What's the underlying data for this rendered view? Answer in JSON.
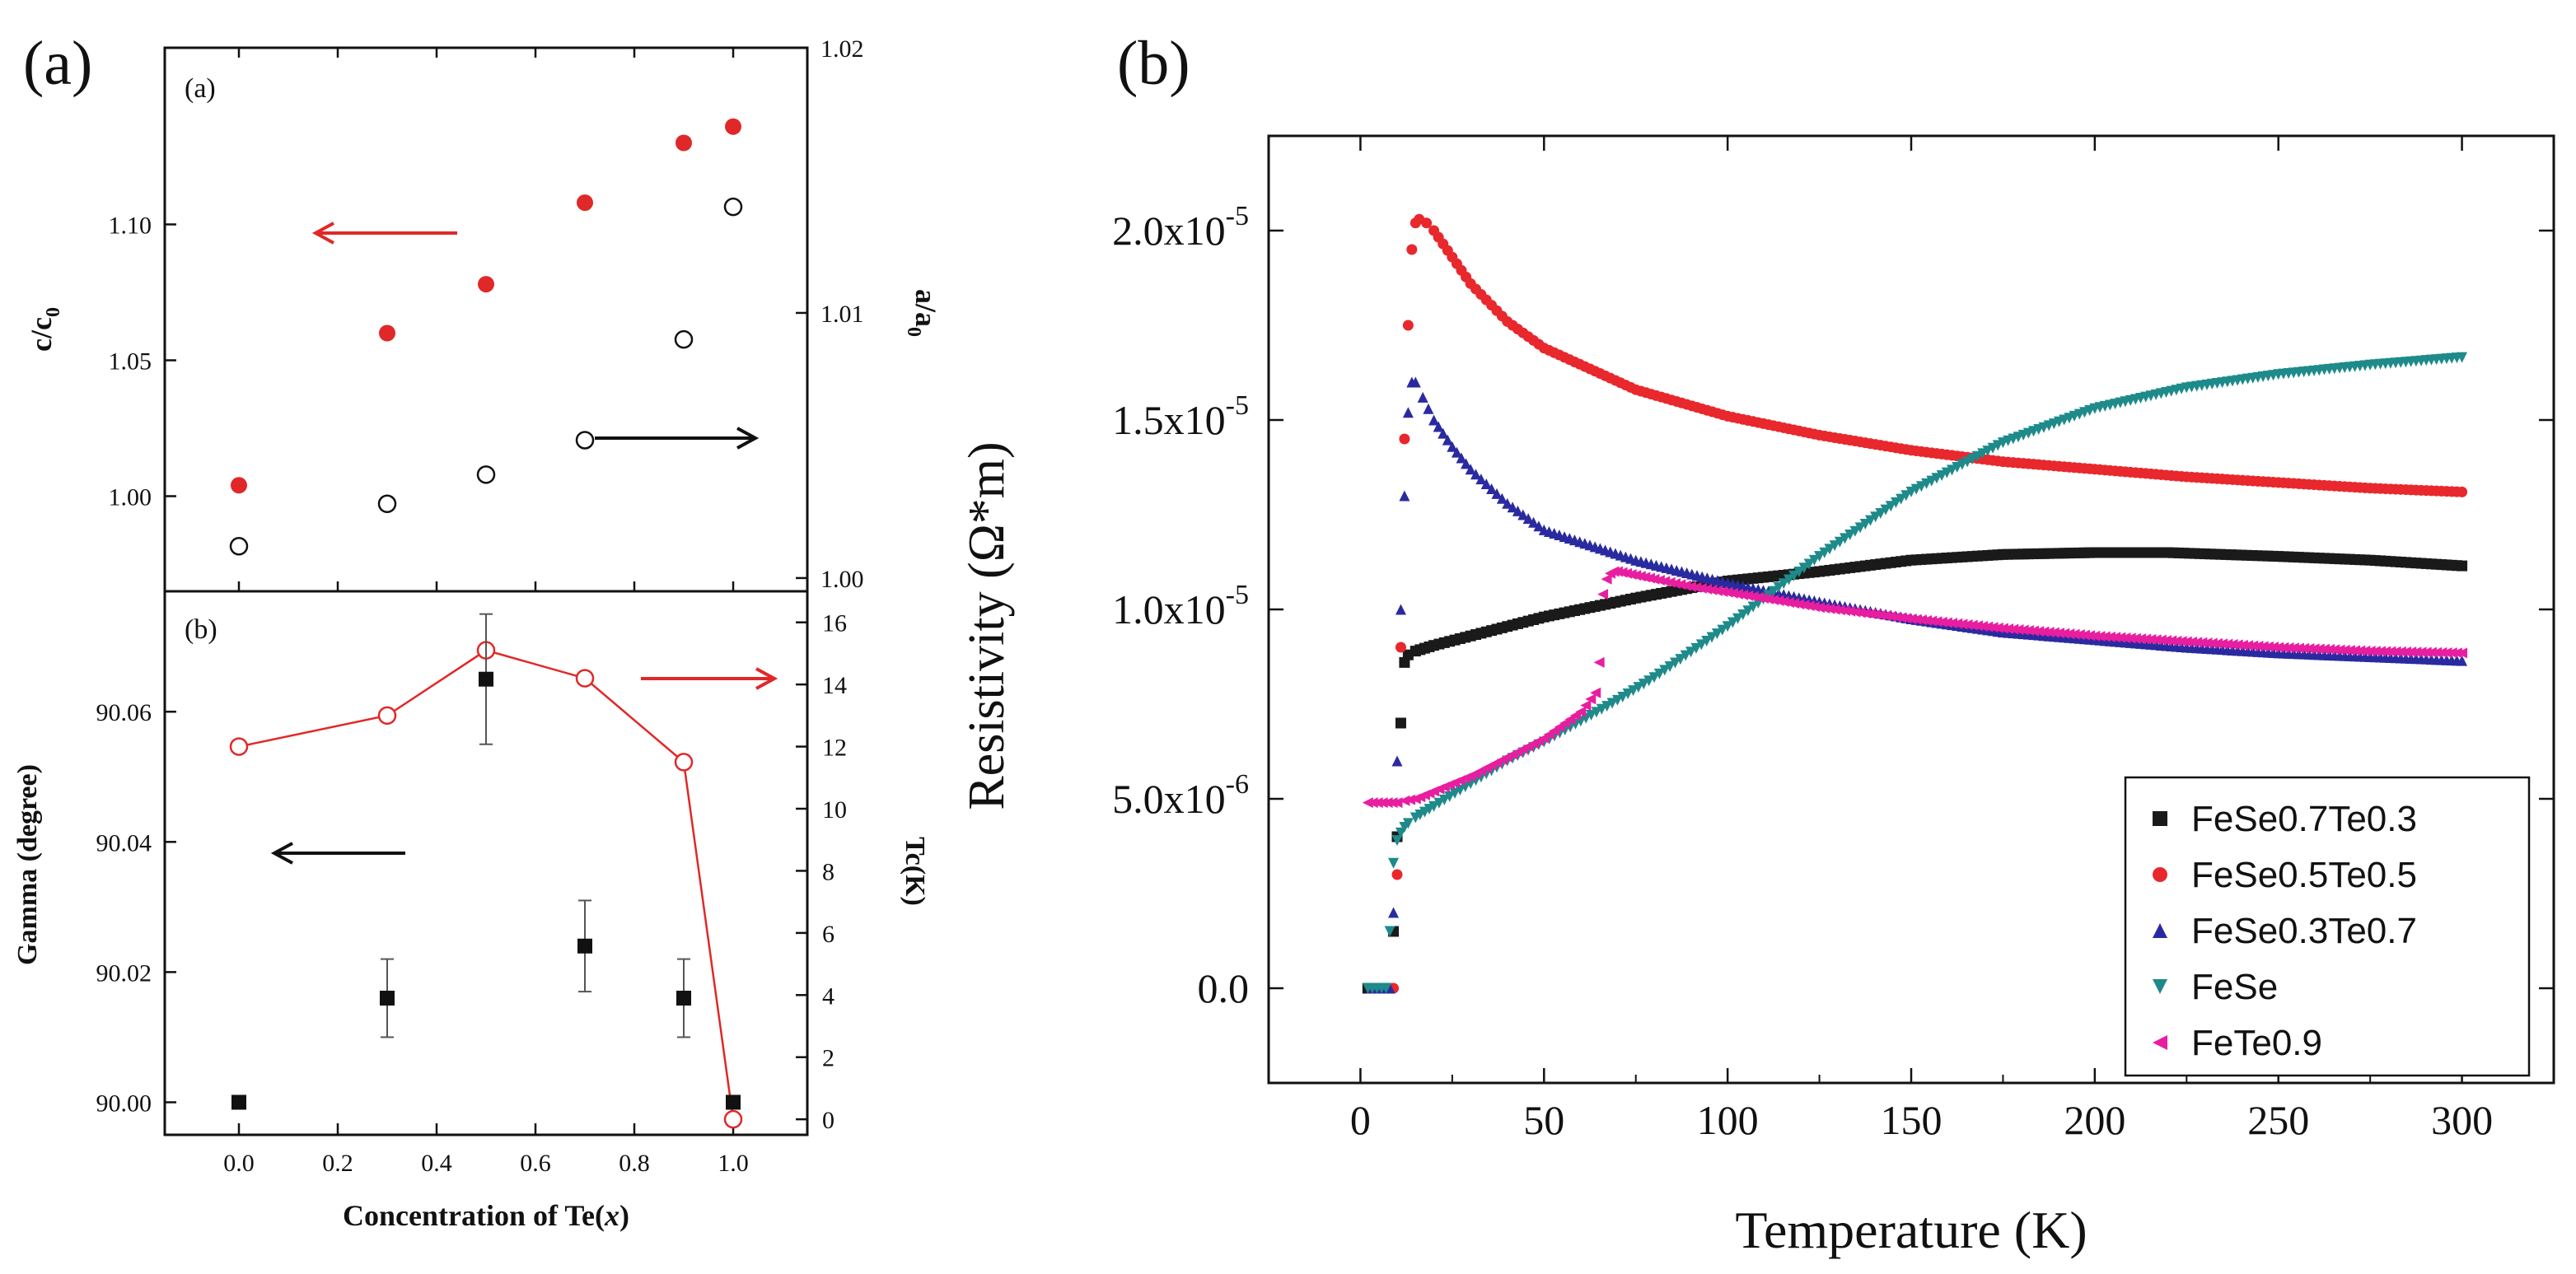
{
  "panel_labels": {
    "left": "(a)",
    "right": "(b)"
  },
  "chart_data": [
    {
      "id": "top-left",
      "type": "scatter",
      "subpanel_label": "(a)",
      "x": [
        0.0,
        0.3,
        0.5,
        0.7,
        0.9,
        1.0
      ],
      "xlim": [
        -0.15,
        1.15
      ],
      "series": [
        {
          "name": "c/c0",
          "axis": "left",
          "marker": "filled-circle",
          "color": "#e02828",
          "values": [
            1.004,
            1.06,
            1.078,
            1.108,
            1.13,
            1.136
          ]
        },
        {
          "name": "a/a0",
          "axis": "right",
          "marker": "open-circle",
          "color": "#111111",
          "values": [
            1.0012,
            1.0028,
            1.0039,
            1.0052,
            1.009,
            1.014
          ]
        }
      ],
      "y_left": {
        "label_main": "c/c",
        "label_sub": "0",
        "lim": [
          0.965,
          1.165
        ],
        "ticks": [
          1.0,
          1.05,
          1.1
        ],
        "tick_labels": [
          "1.00",
          "1.05",
          "1.10"
        ]
      },
      "y_right": {
        "label_main": "a/a",
        "label_sub": "0",
        "lim": [
          0.9995,
          1.02
        ],
        "ticks": [
          1.0,
          1.01,
          1.02
        ],
        "tick_labels": [
          "1.00",
          "1.01",
          "1.02"
        ]
      },
      "annotations": [
        {
          "type": "arrow",
          "direction": "left",
          "color": "#e02828",
          "points_to": "left axis"
        },
        {
          "type": "arrow",
          "direction": "right",
          "color": "#111111",
          "points_to": "right axis"
        }
      ]
    },
    {
      "id": "bottom-left",
      "type": "scatter",
      "subpanel_label": "(b)",
      "xlabel_main": "Concentration of Te(",
      "xlabel_var": "x",
      "xlabel_end": ")",
      "x": [
        0.0,
        0.3,
        0.5,
        0.7,
        0.9,
        1.0
      ],
      "xlim": [
        -0.15,
        1.15
      ],
      "x_ticks": [
        0.0,
        0.2,
        0.4,
        0.6,
        0.8,
        1.0
      ],
      "x_tick_labels": [
        "0.0",
        "0.2",
        "0.4",
        "0.6",
        "0.8",
        "1.0"
      ],
      "series": [
        {
          "name": "Gamma",
          "axis": "left",
          "marker": "filled-square",
          "color": "#111111",
          "values": [
            90.0,
            90.016,
            90.065,
            90.024,
            90.016,
            90.0
          ],
          "errors": [
            0,
            0.006,
            0.01,
            0.007,
            0.006,
            0
          ]
        },
        {
          "name": "Tc",
          "axis": "right",
          "marker": "open-circle-line",
          "color": "#e02828",
          "values": [
            12.0,
            13.0,
            15.1,
            14.2,
            11.5,
            0.0
          ]
        }
      ],
      "y_left": {
        "label": "Gamma (degree)",
        "lim": [
          89.995,
          90.0785
        ],
        "ticks": [
          90.0,
          90.02,
          90.04,
          90.06
        ],
        "tick_labels": [
          "90.00",
          "90.02",
          "90.04",
          "90.06"
        ]
      },
      "y_right": {
        "label": "Tc(K)",
        "lim": [
          -0.5,
          17.0
        ],
        "ticks": [
          0,
          2,
          4,
          6,
          8,
          10,
          12,
          14,
          16
        ],
        "tick_labels": [
          "0",
          "2",
          "4",
          "6",
          "8",
          "10",
          "12",
          "14",
          "16"
        ]
      },
      "annotations": [
        {
          "type": "arrow",
          "direction": "left",
          "color": "#111111",
          "points_to": "left axis"
        },
        {
          "type": "arrow",
          "direction": "right",
          "color": "#e02828",
          "points_to": "right axis"
        }
      ]
    },
    {
      "id": "right-panel",
      "type": "scatter",
      "xlabel": "Temperature (K)",
      "ylabel": "Resistivity (Ω*m)",
      "xlim": [
        -25,
        325
      ],
      "ylim": [
        -2.5e-06,
        2.25e-05
      ],
      "x_ticks": [
        0,
        50,
        100,
        150,
        200,
        250,
        300
      ],
      "x_tick_labels": [
        "0",
        "50",
        "100",
        "150",
        "200",
        "250",
        "300"
      ],
      "y_ticks": [
        0,
        5e-06,
        1e-05,
        1.5e-05,
        2e-05
      ],
      "y_tick_labels": [
        {
          "base": "0.0",
          "exp": ""
        },
        {
          "base": "5.0x10",
          "exp": "-6"
        },
        {
          "base": "1.0x10",
          "exp": "-5"
        },
        {
          "base": "1.5x10",
          "exp": "-5"
        },
        {
          "base": "2.0x10",
          "exp": "-5"
        }
      ],
      "legend_position": "bottom-right",
      "series": [
        {
          "name": "FeSe0.7Te0.3",
          "marker": "square",
          "color": "#1a1a1a",
          "x": [
            2,
            7,
            9,
            10,
            11,
            12,
            13,
            15,
            20,
            30,
            50,
            75,
            100,
            125,
            150,
            175,
            200,
            220,
            250,
            275,
            300
          ],
          "y": [
            0,
            0,
            1.5e-06,
            4e-06,
            7e-06,
            8.6e-06,
            8.8e-06,
            8.9e-06,
            9.05e-06,
            9.3e-06,
            9.8e-06,
            1.03e-05,
            1.075e-05,
            1.1e-05,
            1.13e-05,
            1.145e-05,
            1.15e-05,
            1.15e-05,
            1.14e-05,
            1.13e-05,
            1.115e-05
          ]
        },
        {
          "name": "FeSe0.5Te0.5",
          "marker": "circle",
          "color": "#e8282c",
          "x": [
            3,
            9,
            10,
            11,
            12,
            13,
            14,
            15,
            16,
            18,
            20,
            25,
            30,
            40,
            50,
            75,
            100,
            125,
            150,
            175,
            200,
            225,
            250,
            275,
            300
          ],
          "y": [
            0,
            0,
            3e-06,
            9e-06,
            1.45e-05,
            1.75e-05,
            1.95e-05,
            2.02e-05,
            2.03e-05,
            2.02e-05,
            2e-05,
            1.93e-05,
            1.86e-05,
            1.76e-05,
            1.69e-05,
            1.58e-05,
            1.51e-05,
            1.46e-05,
            1.42e-05,
            1.39e-05,
            1.37e-05,
            1.35e-05,
            1.335e-05,
            1.32e-05,
            1.31e-05
          ]
        },
        {
          "name": "FeSe0.3Te0.7",
          "marker": "triangle-up",
          "color": "#2a2aa0",
          "x": [
            3,
            8,
            9,
            10,
            11,
            12,
            13,
            14,
            15,
            17,
            20,
            25,
            30,
            40,
            50,
            75,
            100,
            125,
            150,
            175,
            200,
            225,
            250,
            275,
            300
          ],
          "y": [
            0,
            0,
            2e-06,
            6e-06,
            1e-05,
            1.3e-05,
            1.52e-05,
            1.6e-05,
            1.6e-05,
            1.56e-05,
            1.5e-05,
            1.43e-05,
            1.37e-05,
            1.28e-05,
            1.21e-05,
            1.13e-05,
            1.07e-05,
            1.02e-05,
            9.75e-06,
            9.4e-06,
            9.2e-06,
            9e-06,
            8.85e-06,
            8.75e-06,
            8.65e-06
          ]
        },
        {
          "name": "FeSe",
          "marker": "triangle-down",
          "color": "#1e8a8a",
          "x": [
            2,
            7,
            8,
            9,
            10,
            11,
            12,
            13,
            15,
            20,
            30,
            40,
            50,
            60,
            70,
            80,
            100,
            125,
            150,
            175,
            200,
            225,
            250,
            275,
            300
          ],
          "y": [
            0,
            0,
            1.5e-06,
            3.3e-06,
            3.9e-06,
            4.1e-06,
            4.25e-06,
            4.35e-06,
            4.5e-06,
            4.8e-06,
            5.4e-06,
            6e-06,
            6.5e-06,
            7.05e-06,
            7.6e-06,
            8.2e-06,
            9.55e-06,
            1.14e-05,
            1.31e-05,
            1.44e-05,
            1.53e-05,
            1.585e-05,
            1.62e-05,
            1.645e-05,
            1.665e-05
          ]
        },
        {
          "name": "FeTe0.9",
          "marker": "triangle-left",
          "color": "#e81ea0",
          "x": [
            2,
            10,
            12,
            15,
            20,
            30,
            40,
            50,
            60,
            64,
            65,
            66,
            67,
            68,
            69,
            70,
            75,
            80,
            90,
            100,
            125,
            150,
            175,
            200,
            225,
            250,
            275,
            300
          ],
          "y": [
            4.9e-06,
            4.9e-06,
            4.95e-06,
            5e-06,
            5.2e-06,
            5.6e-06,
            6.1e-06,
            6.6e-06,
            7.3e-06,
            7.8e-06,
            8.6e-06,
            1.04e-05,
            1.08e-05,
            1.095e-05,
            1.1e-05,
            1.1e-05,
            1.09e-05,
            1.08e-05,
            1.06e-05,
            1.045e-05,
            1.005e-05,
            9.75e-06,
            9.5e-06,
            9.3e-06,
            9.15e-06,
            9e-06,
            8.9e-06,
            8.85e-06
          ]
        }
      ]
    }
  ]
}
